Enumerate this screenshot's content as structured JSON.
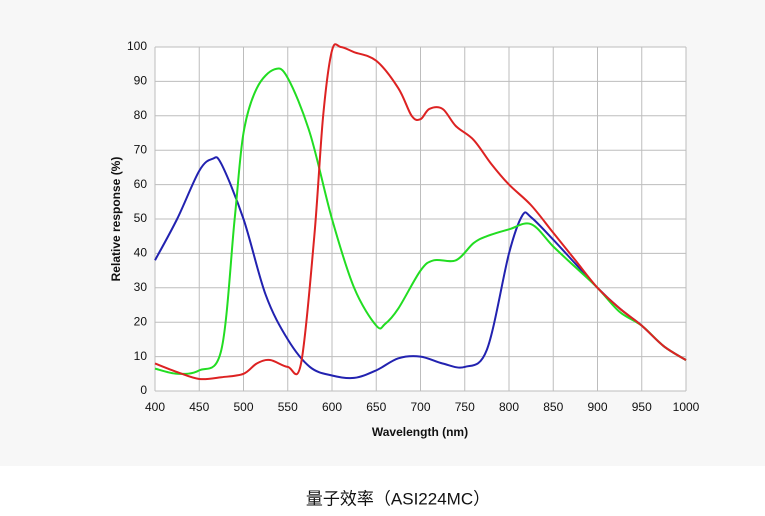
{
  "chart_data": {
    "type": "line",
    "x_label": "Wavelength (nm)",
    "y_label": "Relative response (%)",
    "caption": "量子效率（ASI224MC）",
    "xlim": [
      400,
      1000
    ],
    "xticks": [
      400,
      450,
      500,
      550,
      600,
      650,
      700,
      750,
      800,
      850,
      900,
      950,
      1000
    ],
    "ylim": [
      0,
      100
    ],
    "yticks": [
      0,
      10,
      20,
      30,
      40,
      50,
      60,
      70,
      80,
      90,
      100
    ],
    "grid": true,
    "series": [
      {
        "color": "#2222b0",
        "x": [
          400,
          425,
          450,
          465,
          475,
          500,
          525,
          550,
          575,
          600,
          625,
          650,
          675,
          700,
          725,
          750,
          775,
          800,
          815,
          825,
          850,
          875,
          900,
          925,
          950,
          975,
          1000
        ],
        "values": [
          38,
          50,
          64,
          67.5,
          66,
          50,
          28,
          15,
          7,
          4.5,
          3.8,
          6,
          9.5,
          10,
          8,
          7,
          12,
          40,
          51,
          50.5,
          44,
          37,
          30,
          24,
          19,
          13,
          9
        ]
      },
      {
        "color": "#22dd22",
        "x": [
          400,
          425,
          450,
          475,
          490,
          500,
          515,
          535,
          550,
          575,
          600,
          625,
          650,
          660,
          675,
          700,
          715,
          740,
          760,
          775,
          800,
          825,
          850,
          875,
          900,
          925,
          950,
          975,
          1000
        ],
        "values": [
          6.5,
          5,
          6,
          12,
          50,
          75,
          88,
          93.5,
          91,
          75,
          50,
          30,
          19,
          19.5,
          24,
          35,
          38,
          38,
          43,
          45,
          47,
          48.5,
          42,
          36,
          30,
          23,
          19,
          13,
          9
        ]
      },
      {
        "color": "#dd2222",
        "x": [
          400,
          425,
          450,
          475,
          500,
          515,
          530,
          550,
          565,
          580,
          590,
          600,
          610,
          625,
          650,
          675,
          690,
          700,
          710,
          725,
          740,
          760,
          780,
          800,
          825,
          850,
          875,
          900,
          925,
          950,
          975,
          1000
        ],
        "values": [
          8,
          5.5,
          3.5,
          4,
          5,
          8,
          9,
          7,
          8,
          45,
          80,
          99,
          100,
          98.5,
          96,
          88,
          80,
          79,
          82,
          82,
          77,
          73,
          66,
          60,
          54,
          46,
          38,
          30,
          24,
          19,
          13,
          9
        ]
      }
    ]
  }
}
